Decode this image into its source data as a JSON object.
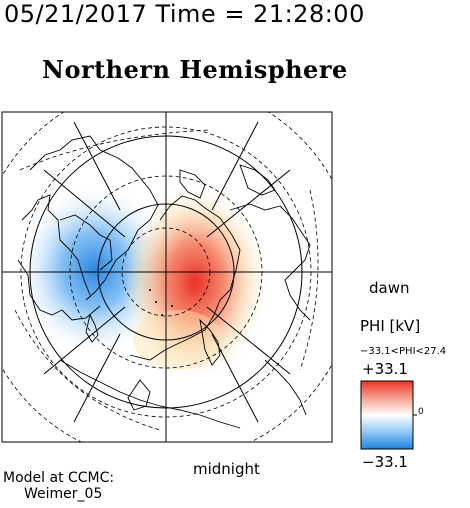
{
  "header": {
    "datetime": "05/21/2017 Time = 21:28:00",
    "hemisphere": "Northern Hemisphere"
  },
  "map": {
    "projection": "polar-stereographic-north",
    "labels": {
      "dawn": "dawn",
      "midnight": "midnight"
    },
    "potential_pattern": [
      {
        "sign": "negative",
        "description": "dusk cell",
        "color": "#3a8fe6"
      },
      {
        "sign": "positive",
        "description": "dawn cell",
        "color": "#e03020"
      }
    ]
  },
  "colorbar": {
    "variable": "PHI [kV]",
    "range_text": "−33.1<PHI<27.4",
    "max_label": "+33.1",
    "min_label": "−33.1",
    "zero_label": "0",
    "colors": {
      "high": "#ee4433",
      "mid": "#ffffff",
      "low": "#2f8fe0"
    }
  },
  "credit": {
    "line1": "Model at CCMC:",
    "line2": "Weimer_05"
  }
}
